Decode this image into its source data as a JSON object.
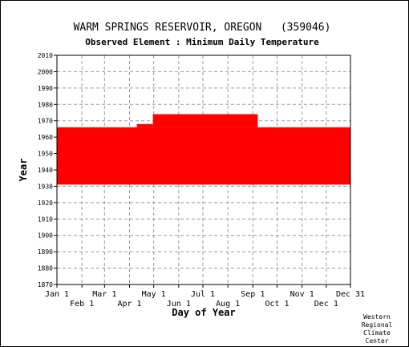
{
  "chart_data": {
    "type": "scatter",
    "title": "WARM SPRINGS RESERVOIR, OREGON   (359046)",
    "subtitle": "Observed Element : Minimum Daily Temperature",
    "xlabel": "Day of Year",
    "ylabel": "Year",
    "xlim": [
      1,
      365
    ],
    "ylim": [
      1870,
      2010
    ],
    "x_ticks_top": [
      {
        "label": "Jan 1",
        "day": 1
      },
      {
        "label": "Mar 1",
        "day": 60
      },
      {
        "label": "May 1",
        "day": 121
      },
      {
        "label": "Jul 1",
        "day": 182
      },
      {
        "label": "Sep 1",
        "day": 244
      },
      {
        "label": "Nov 1",
        "day": 305
      },
      {
        "label": "Dec 31",
        "day": 365
      }
    ],
    "x_ticks_bottom": [
      {
        "label": "Feb 1",
        "day": 32
      },
      {
        "label": "Apr 1",
        "day": 91
      },
      {
        "label": "Jun 1",
        "day": 152
      },
      {
        "label": "Aug 1",
        "day": 213
      },
      {
        "label": "Oct 1",
        "day": 274
      },
      {
        "label": "Dec 1",
        "day": 335
      }
    ],
    "y_ticks": [
      1870,
      1880,
      1890,
      1900,
      1910,
      1920,
      1930,
      1940,
      1950,
      1960,
      1970,
      1980,
      1990,
      2000,
      2010
    ],
    "grid": true,
    "series": [
      {
        "color": "#ff0000",
        "coverage_bands": [
          {
            "day_start": 1,
            "day_end": 365,
            "year_start": 1931,
            "year_end": 1966
          },
          {
            "day_start": 100,
            "day_end": 120,
            "year_start": 1966,
            "year_end": 1968
          },
          {
            "day_start": 120,
            "day_end": 250,
            "year_start": 1966,
            "year_end": 1974
          }
        ]
      }
    ]
  },
  "credit": [
    "Western",
    "Regional",
    "Climate",
    "Center"
  ]
}
